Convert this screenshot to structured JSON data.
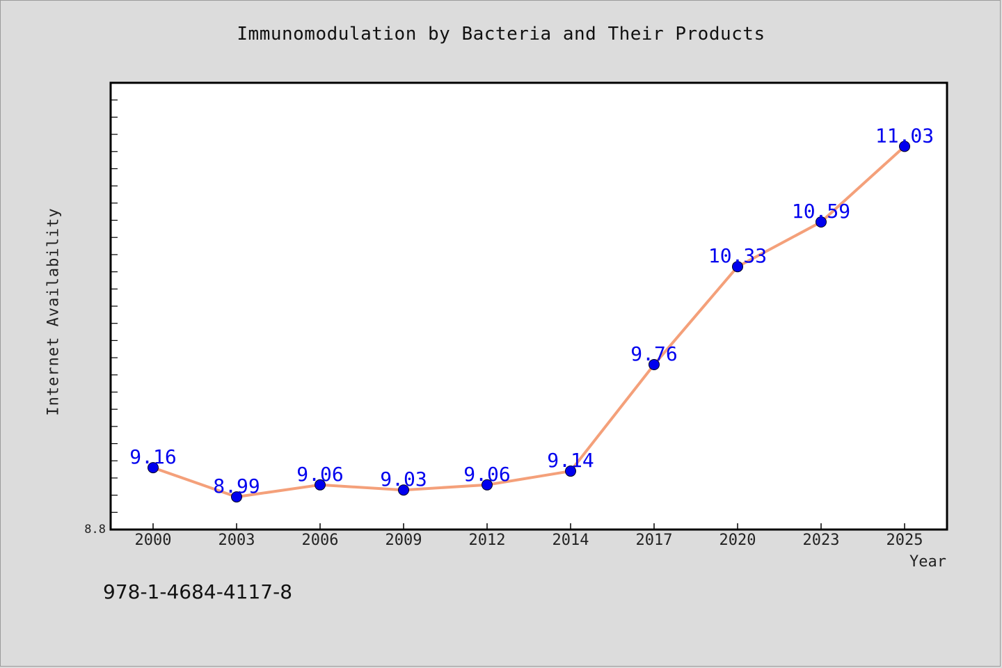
{
  "caption": "978-1-4684-4117-8",
  "colors": {
    "background": "#dcdcdc",
    "plot_background": "#ffffff",
    "line": "#f4a07a",
    "marker": "#0000ee",
    "data_label": "#0000ee"
  },
  "chart_data": {
    "type": "line",
    "title": "Immunomodulation by Bacteria and Their Products",
    "xlabel": "Year",
    "ylabel": "Internet Availability",
    "categories": [
      "2000",
      "2003",
      "2006",
      "2009",
      "2012",
      "2014",
      "2017",
      "2020",
      "2023",
      "2025"
    ],
    "series": [
      {
        "values": [
          9.16,
          8.99,
          9.06,
          9.03,
          9.06,
          9.14,
          9.76,
          10.33,
          10.59,
          11.03
        ],
        "labels": [
          "9.16",
          "8.99",
          "9.06",
          "9.03",
          "9.06",
          "9.14",
          "9.76",
          "10.33",
          "10.59",
          "11.03"
        ]
      }
    ],
    "ylim": [
      8.8,
      11.4
    ],
    "y_tick_labels": [
      "8.8"
    ],
    "grid": false,
    "legend": "none"
  }
}
